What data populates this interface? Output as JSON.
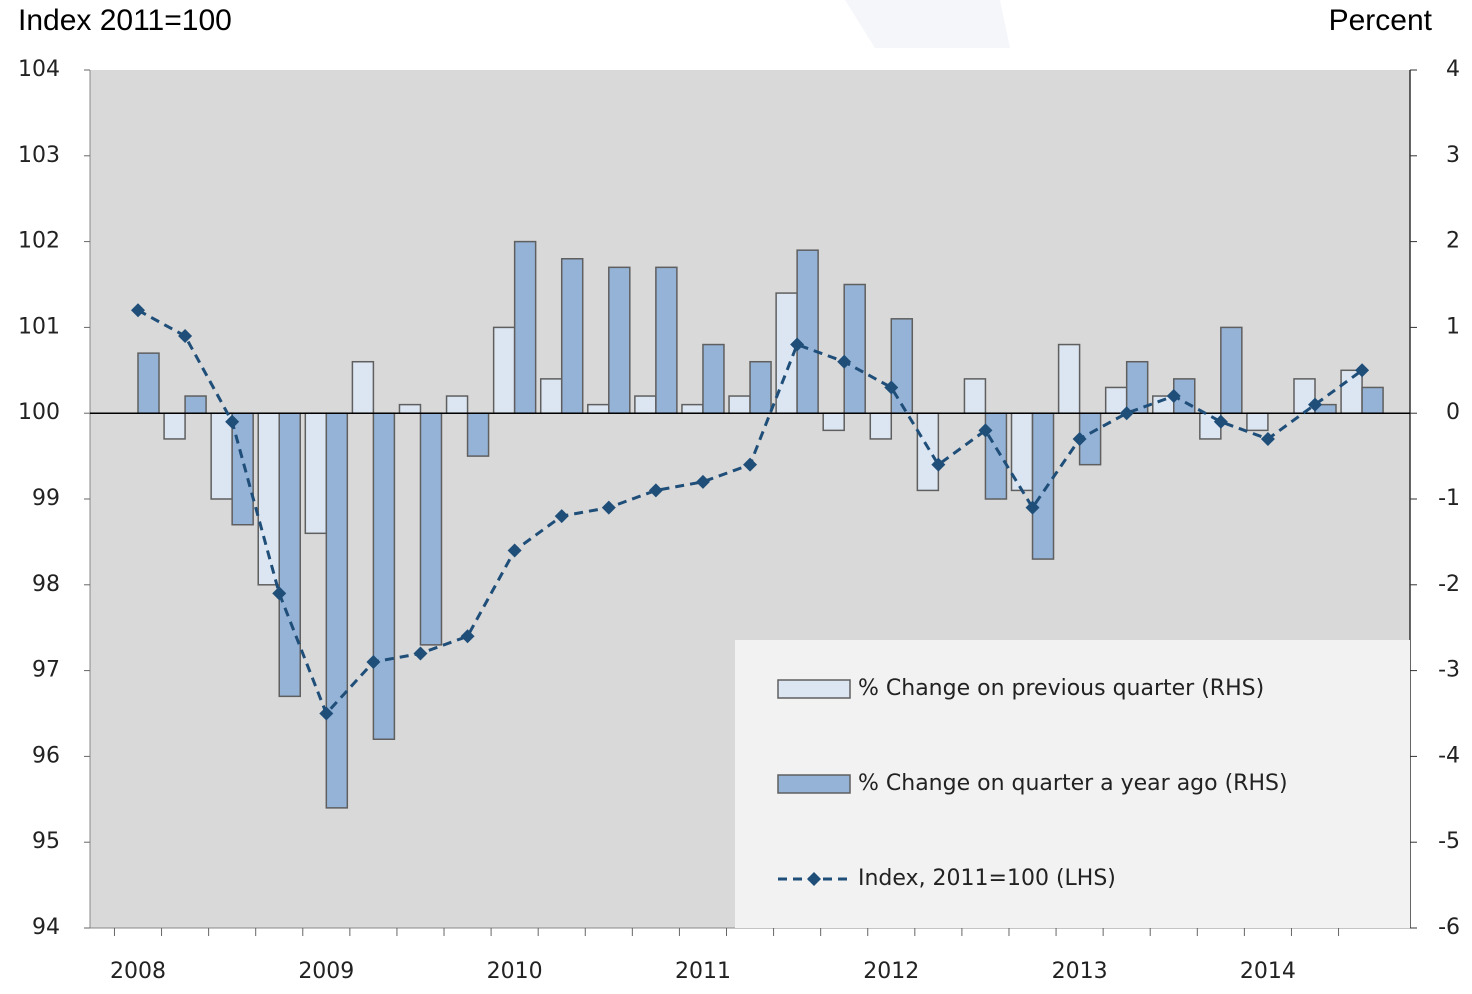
{
  "chart_data": {
    "type": "bar",
    "y_label": "Index 2011=100",
    "y2_label": "Percent",
    "categories": [
      "2008",
      null,
      null,
      null,
      "2009",
      null,
      null,
      null,
      "2010",
      null,
      null,
      null,
      "2011",
      null,
      null,
      null,
      "2012",
      null,
      null,
      null,
      "2013",
      null,
      null,
      null,
      "2014",
      null,
      null
    ],
    "series": [
      {
        "name": "% Change on previous quarter (RHS)",
        "type": "bar",
        "axis": "y2",
        "color": "#dce6f2",
        "values": [
          0,
          -0.3,
          -1.0,
          -2.0,
          -1.4,
          0.6,
          0.1,
          0.2,
          1.0,
          0.4,
          0.1,
          0.2,
          0.1,
          0.2,
          1.4,
          -0.2,
          -0.3,
          -0.9,
          0.4,
          -0.9,
          0.8,
          0.3,
          0.2,
          -0.3,
          -0.2,
          0.4,
          0.5
        ]
      },
      {
        "name": "% Change on quarter a year ago (RHS)",
        "type": "bar",
        "axis": "y2",
        "color": "#95b3d7",
        "values": [
          0.7,
          0.2,
          -1.3,
          -3.3,
          -4.6,
          -3.8,
          -2.7,
          -0.5,
          2.0,
          1.8,
          1.7,
          1.7,
          0.8,
          0.6,
          1.9,
          1.5,
          1.1,
          0,
          -1.0,
          -1.7,
          -0.6,
          0.6,
          0.4,
          1.0,
          0,
          0.1,
          0.3
        ]
      },
      {
        "name": "Index, 2011=100 (LHS)",
        "type": "line",
        "axis": "y",
        "color": "#1f4e79",
        "values": [
          101.2,
          100.9,
          99.9,
          97.9,
          96.5,
          97.1,
          97.2,
          97.4,
          98.4,
          98.8,
          98.9,
          99.1,
          99.2,
          99.4,
          100.8,
          100.6,
          100.3,
          99.4,
          99.8,
          98.9,
          99.7,
          100.0,
          100.2,
          99.9,
          99.7,
          100.1,
          100.5
        ]
      }
    ],
    "ylim": [
      94,
      104
    ],
    "yticks": [
      94,
      95,
      96,
      97,
      98,
      99,
      100,
      101,
      102,
      103,
      104
    ],
    "y2lim": [
      -6,
      4
    ],
    "y2ticks": [
      -6,
      -5,
      -4,
      -3,
      -2,
      -1,
      0,
      1,
      2,
      3,
      4
    ],
    "legend": "lower right"
  }
}
